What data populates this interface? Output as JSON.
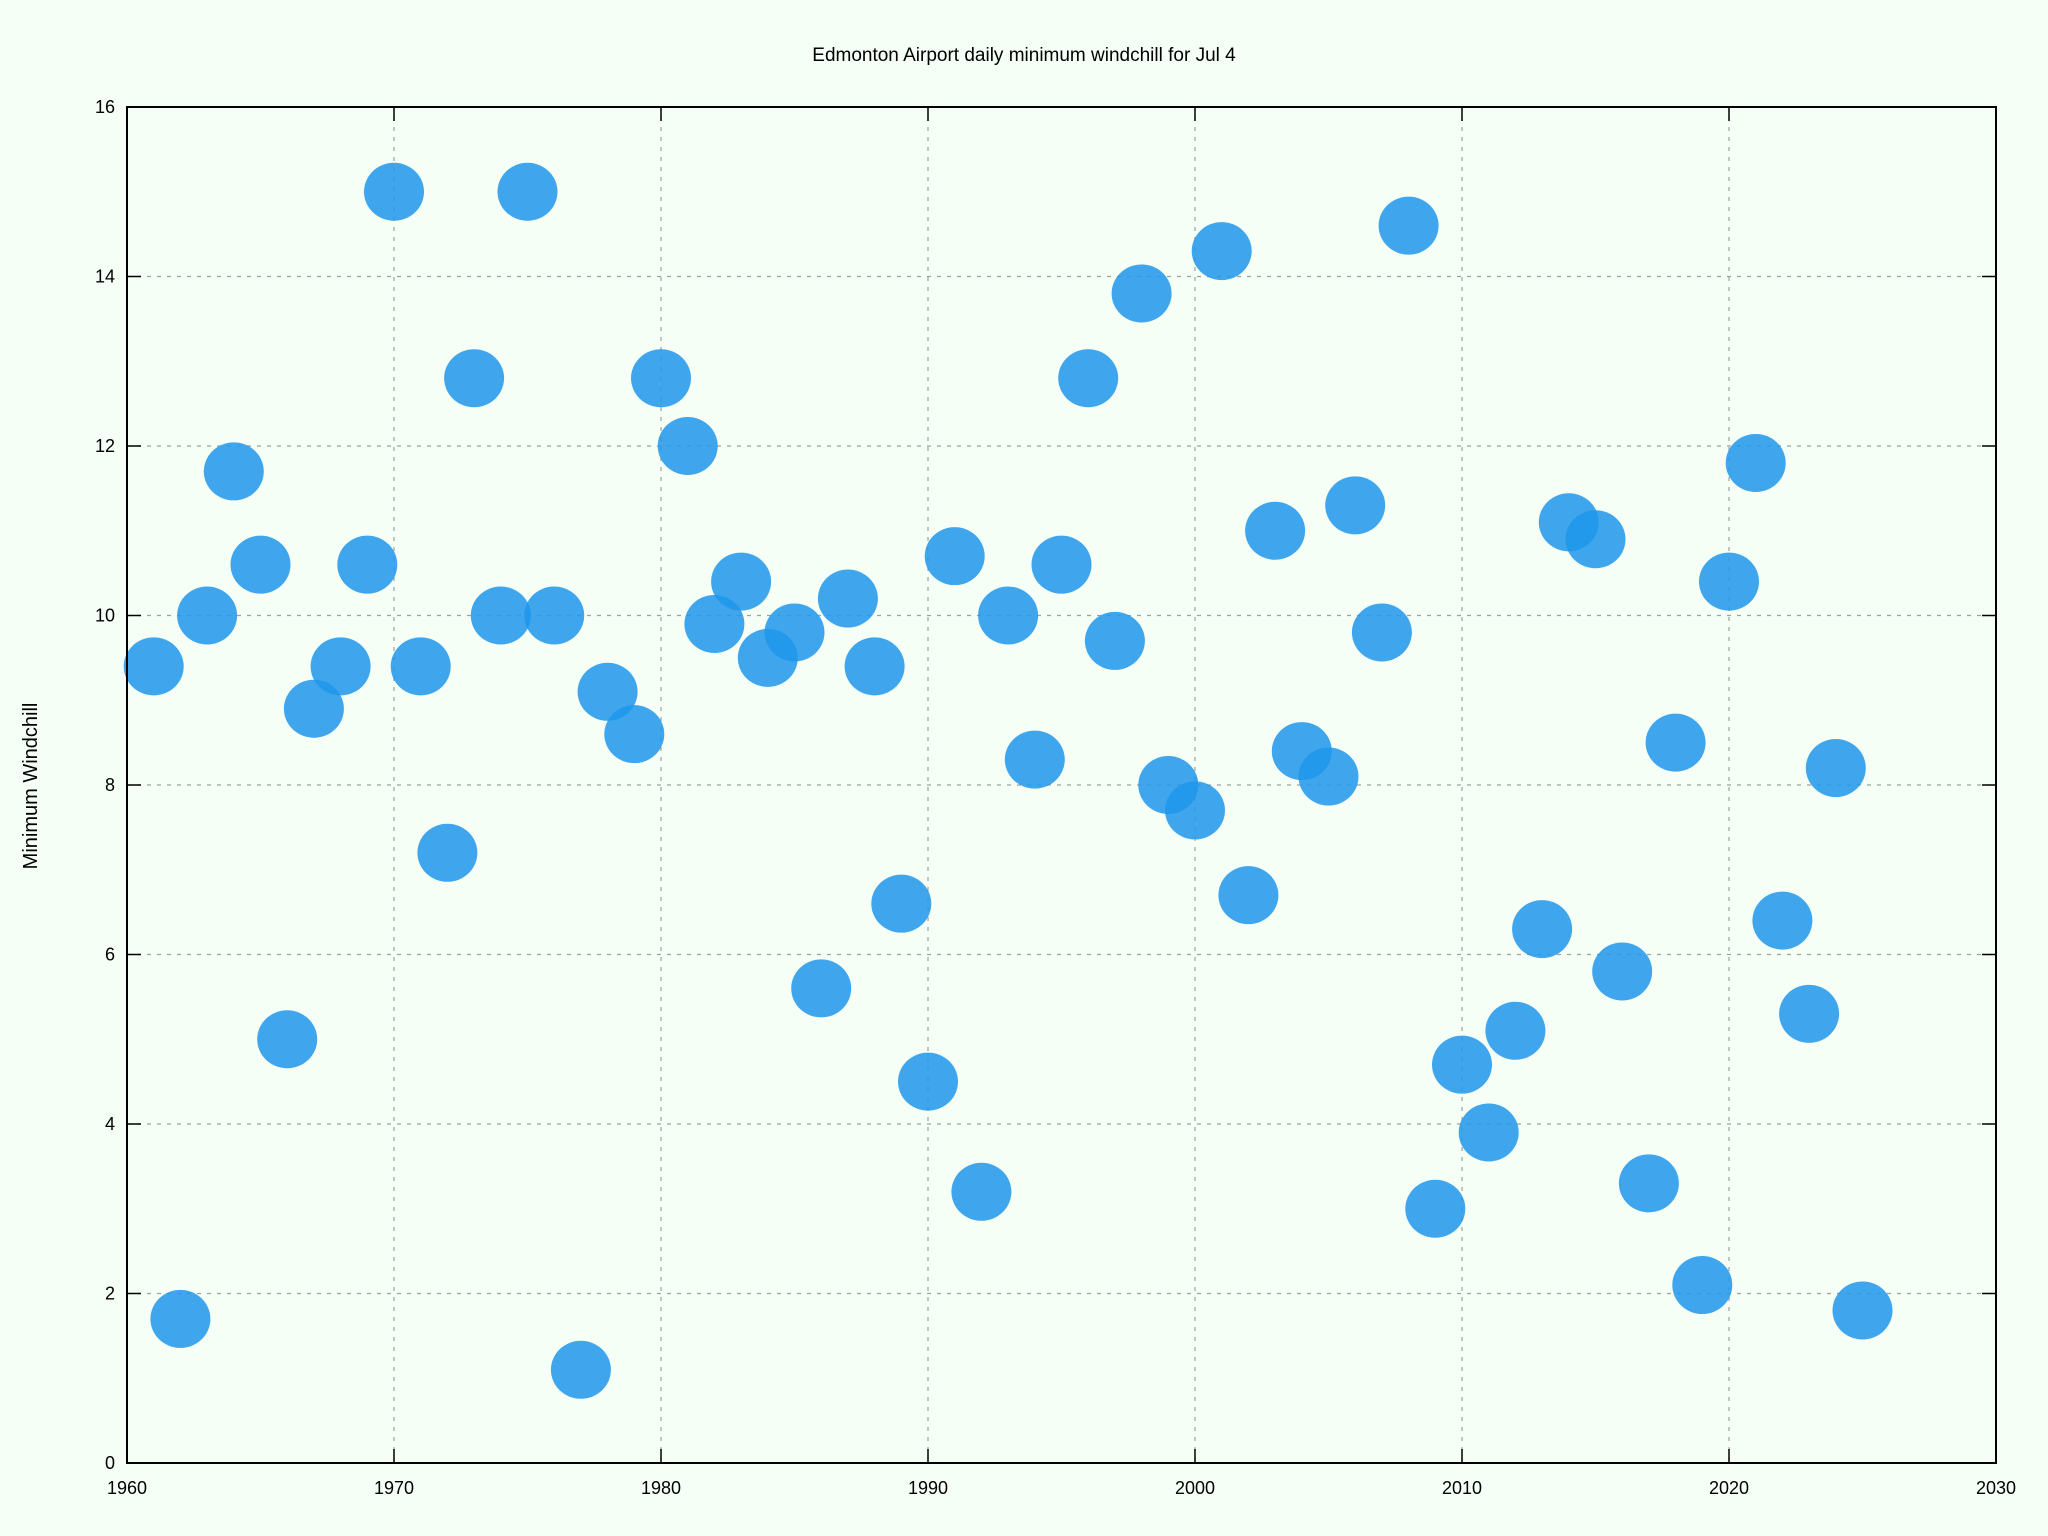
{
  "chart_data": {
    "type": "scatter",
    "title": "Edmonton Airport daily minimum windchill for Jul 4",
    "xlabel": "",
    "ylabel": "Minimum Windchill",
    "xlim": [
      1960,
      2030
    ],
    "ylim": [
      0,
      16
    ],
    "xticks": [
      1960,
      1970,
      1980,
      1990,
      2000,
      2010,
      2020,
      2030
    ],
    "yticks": [
      0,
      2,
      4,
      6,
      8,
      10,
      12,
      14,
      16
    ],
    "grid": true,
    "legend": "none",
    "point_color": "#1e96eb",
    "x": [
      1961,
      1962,
      1963,
      1964,
      1965,
      1966,
      1967,
      1968,
      1969,
      1970,
      1971,
      1972,
      1973,
      1974,
      1975,
      1976,
      1977,
      1978,
      1979,
      1980,
      1981,
      1982,
      1983,
      1984,
      1985,
      1986,
      1987,
      1988,
      1989,
      1990,
      1991,
      1992,
      1993,
      1994,
      1995,
      1996,
      1997,
      1998,
      1999,
      2000,
      2001,
      2002,
      2003,
      2004,
      2005,
      2006,
      2007,
      2008,
      2009,
      2010,
      2011,
      2012,
      2013,
      2014,
      2015,
      2016,
      2017,
      2018,
      2019,
      2020,
      2021,
      2022,
      2023,
      2024,
      2025
    ],
    "y": [
      9.4,
      1.7,
      10.0,
      11.7,
      10.6,
      5.0,
      8.9,
      9.4,
      10.6,
      15.0,
      9.4,
      7.2,
      12.8,
      10.0,
      15.0,
      10.0,
      1.1,
      9.1,
      8.6,
      12.8,
      12.0,
      9.9,
      10.4,
      9.5,
      9.8,
      5.6,
      10.2,
      9.4,
      6.6,
      4.5,
      10.7,
      3.2,
      10.0,
      8.3,
      10.6,
      12.8,
      9.7,
      13.8,
      8.0,
      7.7,
      14.3,
      6.7,
      11.0,
      8.4,
      8.1,
      11.3,
      9.8,
      14.6,
      3.0,
      4.7,
      3.9,
      5.1,
      6.3,
      11.1,
      10.9,
      5.8,
      3.3,
      8.5,
      2.1,
      10.4,
      11.8,
      6.4,
      5.3,
      8.2,
      1.8
    ]
  }
}
